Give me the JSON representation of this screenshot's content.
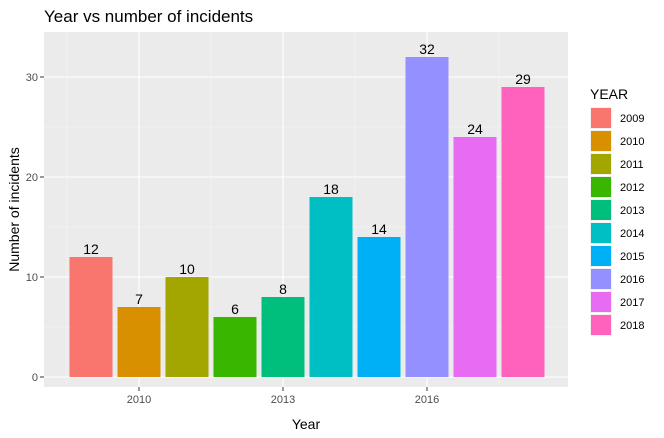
{
  "chart_data": {
    "type": "bar",
    "title": "Year vs number of incidents",
    "xlabel": "Year",
    "ylabel": "Number of incidents",
    "categories": [
      "2009",
      "2010",
      "2011",
      "2012",
      "2013",
      "2014",
      "2015",
      "2016",
      "2017",
      "2018"
    ],
    "values": [
      12,
      7,
      10,
      6,
      8,
      18,
      14,
      32,
      24,
      29
    ],
    "colors": [
      "#F8766D",
      "#D89000",
      "#A3A500",
      "#39B600",
      "#00BF7D",
      "#00BFC4",
      "#00B0F6",
      "#9590FF",
      "#E76BF3",
      "#FF62BC"
    ],
    "x_ticks": [
      "2010",
      "2013",
      "2016"
    ],
    "y_ticks": [
      0,
      10,
      20,
      30
    ],
    "ylim": [
      -1.6,
      33.6
    ],
    "grid": true,
    "background": "#EBEBEB",
    "legend": {
      "title": "YEAR",
      "position": "right"
    }
  }
}
